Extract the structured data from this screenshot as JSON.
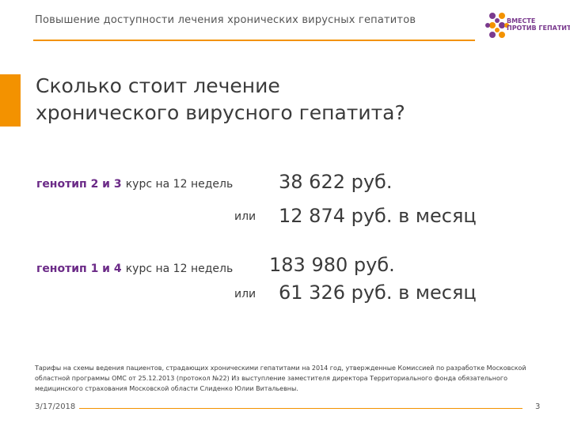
{
  "header": {
    "title": "Повышение доступности лечения хронических вирусных гепатитов",
    "accent_color": "#f39200"
  },
  "logo": {
    "line1": "ВМЕСТЕ",
    "line2": "ПРОТИВ ГЕПАТИТА",
    "colors": [
      "#7a3a8e",
      "#f39200"
    ]
  },
  "title": {
    "line1": "Сколько стоит лечение",
    "line2": "хронического вирусного гепатита?"
  },
  "treatments": [
    {
      "genotype": "генотип 2 и 3",
      "course": "курс на 12 недель",
      "price_total": "38 622 руб.",
      "or_label": "или",
      "price_month": "12 874 руб. в месяц"
    },
    {
      "genotype": "генотип 1 и 4",
      "course": "курс на 12 недель",
      "price_total": "183 980 руб.",
      "or_label": "или",
      "price_month": "61 326 руб. в месяц"
    }
  ],
  "footnote": "Тарифы на схемы ведения пациентов, страдающих хроническими гепатитами на 2014 год, утвержденные Комиссией по разработке Московской областной программы ОМС от 25.12.2013 (протокол №22) Из выступление заместителя директора Территориального фонда обязательного медицинского страхования Московской области Слиденко Юлии Витальевны.",
  "footer": {
    "date": "3/17/2018",
    "page": "3"
  }
}
